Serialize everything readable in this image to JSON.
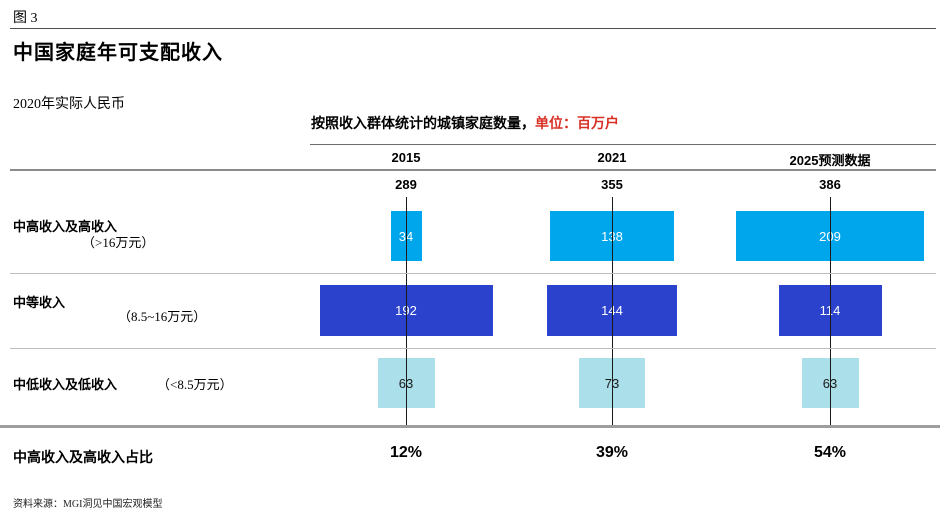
{
  "figure_label": "图 3",
  "title": "中国家庭年可支配收入",
  "subtitle": "2020年实际人民币",
  "chart_header": {
    "label": "按照收入群体统计的城镇家庭数量，",
    "unit": "单位：百万户",
    "unit_color": "#D93025"
  },
  "income_rows": [
    {
      "label": "中高收入及高收入",
      "range": "（>16万元）"
    },
    {
      "label": "中等收入",
      "range": "（8.5~16万元）"
    },
    {
      "label": "中低收入及低收入",
      "range": "（<8.5万元）"
    }
  ],
  "source": "资料来源：MGI洞见中国宏观模型",
  "chart_data": {
    "type": "bar",
    "title": "中国家庭年可支配收入",
    "subtitle": "2020年实际人民币",
    "header": "按照收入群体统计的城镇家庭数量，单位：百万户",
    "unit": "百万户",
    "categories": [
      "2015",
      "2021",
      "2025预测数据"
    ],
    "column_totals": [
      289,
      355,
      386
    ],
    "series": [
      {
        "name": "中高收入及高收入（>16万元）",
        "values": [
          34,
          138,
          209
        ],
        "color": "#00A6EC",
        "label_color": "#ffffff"
      },
      {
        "name": "中等收入（8.5~16万元）",
        "values": [
          192,
          144,
          114
        ],
        "color": "#2B42CD",
        "label_color": "#ffffff"
      },
      {
        "name": "中低收入及低收入（<8.5万元）",
        "values": [
          63,
          73,
          63
        ],
        "color": "#ABDFE9",
        "label_color": "#1a1a1a"
      }
    ],
    "share_label": "中高收入及高收入占比",
    "share_values": [
      "12%",
      "39%",
      "54%"
    ],
    "source": "MGI洞见中国宏观模型",
    "legend": "none",
    "grid": "off"
  }
}
